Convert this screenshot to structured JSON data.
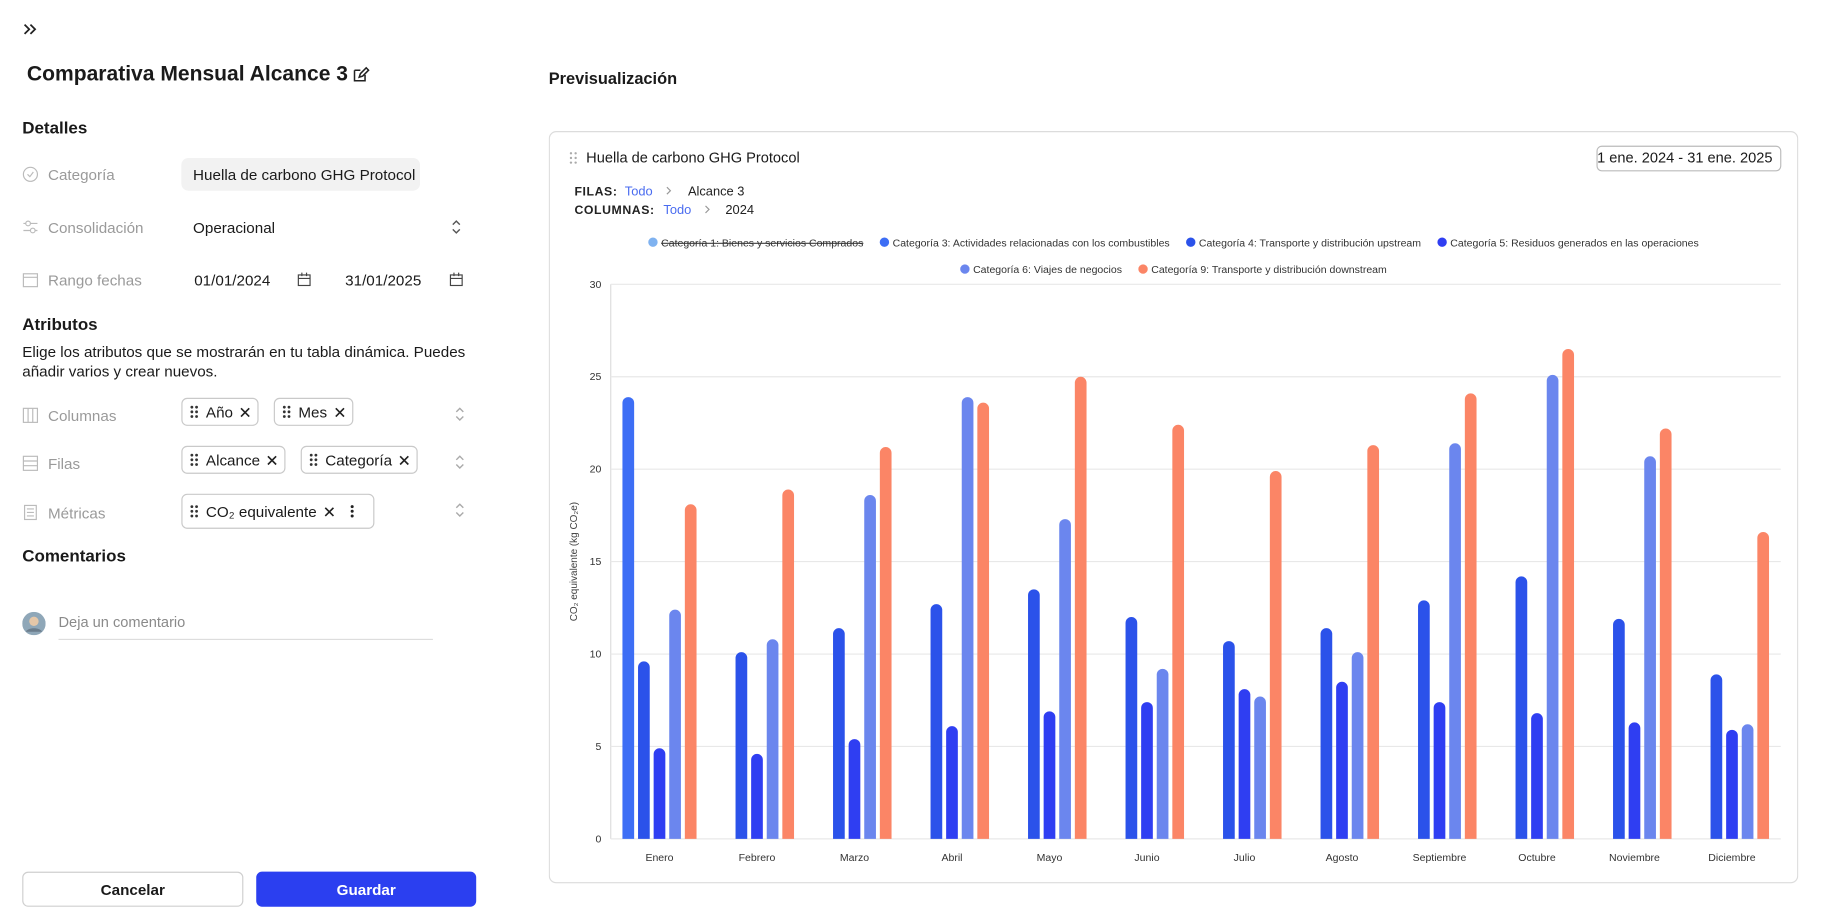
{
  "report": {
    "title": "Comparativa Mensual Alcance 3"
  },
  "details": {
    "heading": "Detalles",
    "category": {
      "label": "Categoría",
      "value": "Huella de carbono GHG Protocol"
    },
    "consolidation": {
      "label": "Consolidación",
      "value": "Operacional"
    },
    "date_range": {
      "label": "Rango fechas",
      "start": "01/01/2024",
      "end": "31/01/2025"
    }
  },
  "attributes": {
    "heading": "Atributos",
    "description": "Elige los atributos que se mostrarán en tu tabla dinámica. Puedes añadir varios y crear nuevos.",
    "columns": {
      "label": "Columnas",
      "chips": [
        "Año",
        "Mes"
      ]
    },
    "rows": {
      "label": "Filas",
      "chips": [
        "Alcance",
        "Categoría"
      ]
    },
    "metrics": {
      "label": "Métricas",
      "chips": [
        "CO₂ equivalente"
      ]
    }
  },
  "comments": {
    "heading": "Comentarios",
    "placeholder": "Deja un comentario"
  },
  "actions": {
    "cancel": "Cancelar",
    "save": "Guardar"
  },
  "preview": {
    "heading": "Previsualización",
    "card_title": "Huella de carbono GHG Protocol",
    "date_range": "1 ene. 2024 - 31 ene. 2025",
    "filters": [
      {
        "label": "FILAS:",
        "link": "Todo",
        "value": "Alcance 3"
      },
      {
        "label": "COLUMNAS:",
        "link": "Todo",
        "value": "2024"
      }
    ]
  },
  "chart_data": {
    "type": "bar",
    "y_label": "CO₂ equivalente (kg CO₂e)",
    "categories": [
      "Enero",
      "Febrero",
      "Marzo",
      "Abril",
      "Mayo",
      "Junio",
      "Julio",
      "Agosto",
      "Septiembre",
      "Octubre",
      "Noviembre",
      "Diciembre"
    ],
    "series": [
      {
        "name": "Categoría 1: Bienes y servicios Comprados",
        "color": "#7fb2f0",
        "hidden": true,
        "values": [
          null,
          null,
          null,
          null,
          null,
          null,
          null,
          null,
          null,
          null,
          null,
          null
        ]
      },
      {
        "name": "Categoría 3: Actividades relacionadas con los combustibles",
        "color": "#3d6ef5",
        "values": [
          23.9,
          null,
          null,
          null,
          null,
          null,
          null,
          null,
          null,
          null,
          null,
          null
        ]
      },
      {
        "name": "Categoría 4: Transporte y distribución upstream",
        "color": "#2b52ea",
        "values": [
          9.6,
          10.1,
          11.4,
          12.7,
          13.5,
          12.0,
          10.7,
          11.4,
          12.9,
          14.2,
          11.9,
          8.9
        ]
      },
      {
        "name": "Categoría 5: Residuos generados en las operaciones",
        "color": "#2f3ef2",
        "values": [
          4.9,
          4.6,
          5.4,
          6.1,
          6.9,
          7.4,
          8.1,
          8.5,
          7.4,
          6.8,
          6.3,
          5.9
        ]
      },
      {
        "name": "Categoría 6: Viajes de negocios",
        "color": "#6b86ee",
        "values": [
          12.4,
          10.8,
          18.6,
          23.9,
          17.3,
          9.2,
          7.7,
          10.1,
          21.4,
          25.1,
          20.7,
          6.2
        ]
      },
      {
        "name": "Categoría 9: Transporte y distribución downstream",
        "color": "#fb8566",
        "values": [
          18.1,
          18.9,
          21.2,
          23.6,
          25.0,
          22.4,
          19.9,
          21.3,
          24.1,
          26.5,
          22.2,
          16.6
        ]
      }
    ],
    "ylim": [
      0,
      30
    ],
    "yticks": [
      0,
      5,
      10,
      15,
      20,
      25,
      30
    ],
    "grid": true
  }
}
